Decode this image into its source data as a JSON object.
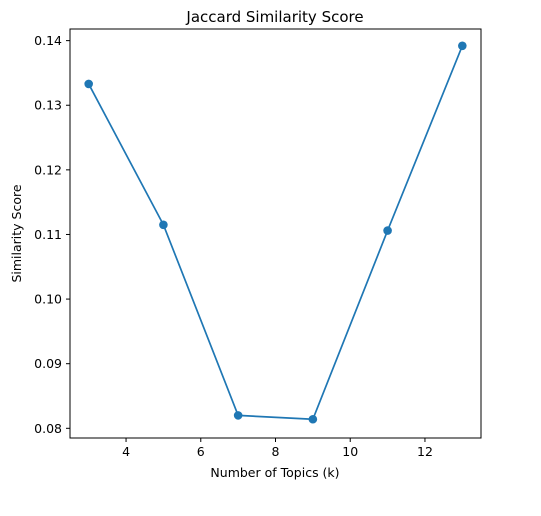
{
  "chart_data": {
    "type": "line",
    "title": "Jaccard Similarity Score",
    "xlabel": "Number of Topics (k)",
    "ylabel": "Similarity Score",
    "x": [
      3,
      5,
      7,
      9,
      11,
      13
    ],
    "series": [
      {
        "values": [
          0.1333,
          0.1115,
          0.082,
          0.0814,
          0.1106,
          0.1392
        ],
        "color": "#1f77b4",
        "marker": "circle"
      }
    ],
    "xlim": [
      2.5,
      13.5
    ],
    "ylim": [
      0.0785,
      0.1418
    ],
    "xticks": [
      4,
      6,
      8,
      10,
      12
    ],
    "yticks": [
      0.08,
      0.09,
      0.1,
      0.11,
      0.12,
      0.13,
      0.14
    ],
    "xtick_labels": [
      "4",
      "6",
      "8",
      "10",
      "12"
    ],
    "ytick_labels": [
      "0.08",
      "0.09",
      "0.10",
      "0.11",
      "0.12",
      "0.13",
      "0.14"
    ],
    "grid": false,
    "legend": "none"
  }
}
